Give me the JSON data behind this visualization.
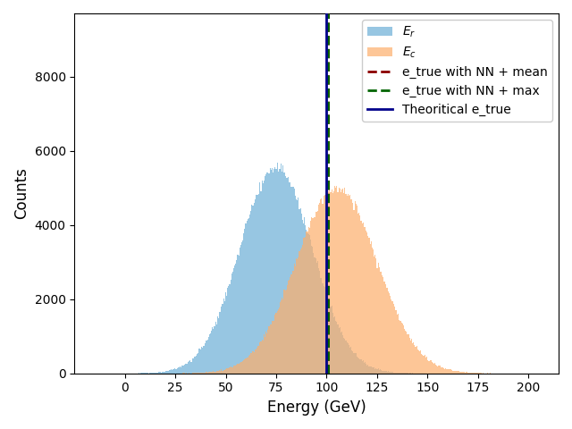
{
  "title": "",
  "xlabel": "Energy (GeV)",
  "ylabel": "Counts",
  "xlim": [
    -25,
    215
  ],
  "ylim": [
    0,
    9700
  ],
  "yticks": [
    0,
    2000,
    4000,
    6000,
    8000
  ],
  "xticks": [
    0,
    25,
    50,
    75,
    100,
    125,
    150,
    175,
    200
  ],
  "Er_mean": 75,
  "Er_std": 18,
  "Er_n": 500000,
  "Ec_mean": 105,
  "Ec_std": 20,
  "Ec_n": 500000,
  "Er_color": "#6baed6",
  "Ec_color": "#fdae6b",
  "Er_alpha": 0.7,
  "Ec_alpha": 0.7,
  "vline_theoretical": 100,
  "vline_mean": 100.5,
  "vline_max": 100.5,
  "vline_blue_color": "#00008B",
  "vline_red_color": "#8B0000",
  "vline_green_color": "#006400",
  "nbins": 500,
  "legend_Er": "$E_r$",
  "legend_Ec": "$E_c$",
  "legend_theoretical": "Theoritical e_true",
  "legend_mean": "e_true with NN + mean",
  "legend_max": "e_true with NN + max",
  "seed": 42
}
